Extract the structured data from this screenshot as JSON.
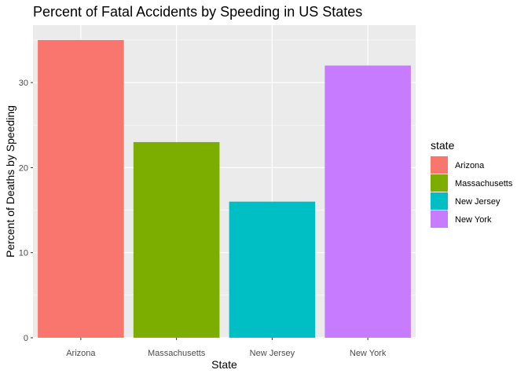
{
  "chart_data": {
    "type": "bar",
    "title": "Percent of Fatal Accidents by Speeding in US States",
    "xlabel": "State",
    "ylabel": "Percent of Deaths by Speeding",
    "categories": [
      "Arizona",
      "Massachusetts",
      "New Jersey",
      "New York"
    ],
    "values": [
      35,
      23,
      16,
      32
    ],
    "colors": [
      "#F8766D",
      "#7CAE00",
      "#00BFC4",
      "#C77CFF"
    ],
    "ylim": [
      0,
      36.75
    ],
    "yticks": [
      0,
      10,
      20,
      30
    ],
    "grid": true,
    "panel_background": "#EBEBEB",
    "grid_color": "#FFFFFF",
    "legend": {
      "title": "state",
      "position": "right",
      "items": [
        "Arizona",
        "Massachusetts",
        "New Jersey",
        "New York"
      ]
    }
  }
}
